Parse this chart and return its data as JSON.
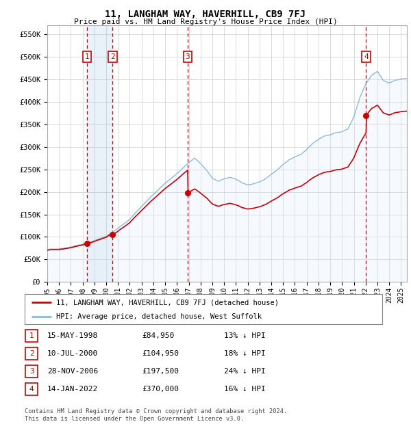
{
  "title": "11, LANGHAM WAY, HAVERHILL, CB9 7FJ",
  "subtitle": "Price paid vs. HM Land Registry's House Price Index (HPI)",
  "ylabel_ticks": [
    "£0",
    "£50K",
    "£100K",
    "£150K",
    "£200K",
    "£250K",
    "£300K",
    "£350K",
    "£400K",
    "£450K",
    "£500K",
    "£550K"
  ],
  "ytick_values": [
    0,
    50000,
    100000,
    150000,
    200000,
    250000,
    300000,
    350000,
    400000,
    450000,
    500000,
    550000
  ],
  "ylim": [
    0,
    570000
  ],
  "xlim_start": 1995.0,
  "xlim_end": 2025.5,
  "sale_points": [
    {
      "label": "1",
      "date_num": 1998.37,
      "price": 84950
    },
    {
      "label": "2",
      "date_num": 2000.54,
      "price": 104950
    },
    {
      "label": "3",
      "date_num": 2006.91,
      "price": 197500
    },
    {
      "label": "4",
      "date_num": 2022.04,
      "price": 370000
    }
  ],
  "sale_color": "#cc0000",
  "hpi_color": "#88bbdd",
  "hpi_fill_color": "#ddeeff",
  "grid_color": "#cccccc",
  "vline_color": "#cc0000",
  "background_color": "#ffffff",
  "legend_entries": [
    "11, LANGHAM WAY, HAVERHILL, CB9 7FJ (detached house)",
    "HPI: Average price, detached house, West Suffolk"
  ],
  "table_rows": [
    [
      "1",
      "15-MAY-1998",
      "£84,950",
      "13% ↓ HPI"
    ],
    [
      "2",
      "10-JUL-2000",
      "£104,950",
      "18% ↓ HPI"
    ],
    [
      "3",
      "28-NOV-2006",
      "£197,500",
      "24% ↓ HPI"
    ],
    [
      "4",
      "14-JAN-2022",
      "£370,000",
      "16% ↓ HPI"
    ]
  ],
  "footer": "Contains HM Land Registry data © Crown copyright and database right 2024.\nThis data is licensed under the Open Government Licence v3.0.",
  "xtick_years": [
    1995,
    1996,
    1997,
    1998,
    1999,
    2000,
    2001,
    2002,
    2003,
    2004,
    2005,
    2006,
    2007,
    2008,
    2009,
    2010,
    2011,
    2012,
    2013,
    2014,
    2015,
    2016,
    2017,
    2018,
    2019,
    2020,
    2021,
    2022,
    2023,
    2024,
    2025
  ],
  "hpi_anchors_x": [
    1995,
    1996,
    1997,
    1998,
    1999,
    2000,
    2001,
    2002,
    2003,
    2004,
    2005,
    2006,
    2007,
    2007.5,
    2008,
    2008.5,
    2009,
    2009.5,
    2010,
    2010.5,
    2011,
    2011.5,
    2012,
    2012.5,
    2013,
    2013.5,
    2014,
    2014.5,
    2015,
    2015.5,
    2016,
    2016.5,
    2017,
    2017.5,
    2018,
    2018.5,
    2019,
    2019.5,
    2020,
    2020.5,
    2021,
    2021.5,
    2022,
    2022.5,
    2023,
    2023.5,
    2024,
    2024.5,
    2025
  ],
  "hpi_anchors_y": [
    72000,
    74000,
    79000,
    85000,
    93000,
    103000,
    120000,
    140000,
    168000,
    195000,
    220000,
    240000,
    265000,
    275000,
    262000,
    248000,
    230000,
    222000,
    228000,
    232000,
    228000,
    220000,
    215000,
    218000,
    223000,
    230000,
    240000,
    250000,
    262000,
    272000,
    278000,
    283000,
    295000,
    308000,
    318000,
    325000,
    328000,
    333000,
    335000,
    342000,
    368000,
    410000,
    440000,
    460000,
    468000,
    448000,
    442000,
    448000,
    450000
  ]
}
